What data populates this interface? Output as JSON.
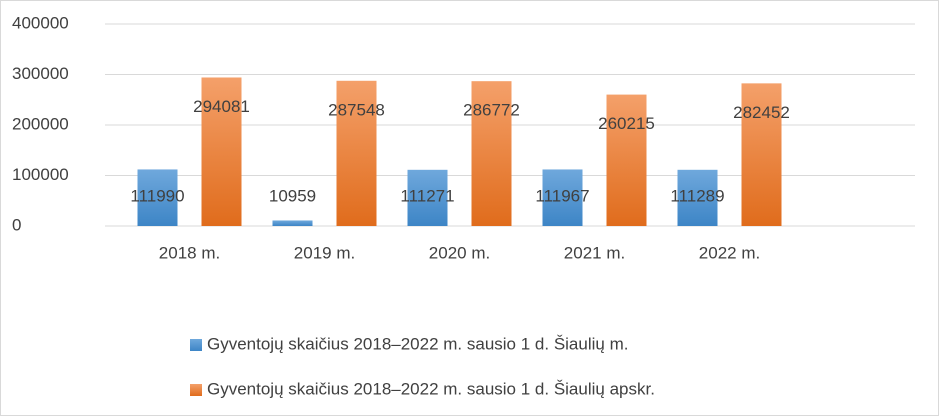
{
  "chart_data": {
    "type": "bar",
    "categories": [
      "2018 m.",
      "2019 m.",
      "2020 m.",
      "2021 m.",
      "2022 m."
    ],
    "series": [
      {
        "name": "Gyventojų skaičius 2018–2022 m. sausio 1 d. Šiaulių m.",
        "color": "#5b9bd5",
        "values": [
          111990,
          10959,
          111271,
          111967,
          111289
        ]
      },
      {
        "name": "Gyventojų skaičius 2018–2022 m. sausio 1 d. Šiaulių apskr.",
        "color": "#ed7d31",
        "values": [
          294081,
          287548,
          286772,
          260215,
          282452
        ]
      }
    ],
    "ylim": [
      0,
      400000
    ],
    "yticks": [
      0,
      100000,
      200000,
      300000,
      400000
    ],
    "grid": true,
    "legend": "bottom"
  }
}
